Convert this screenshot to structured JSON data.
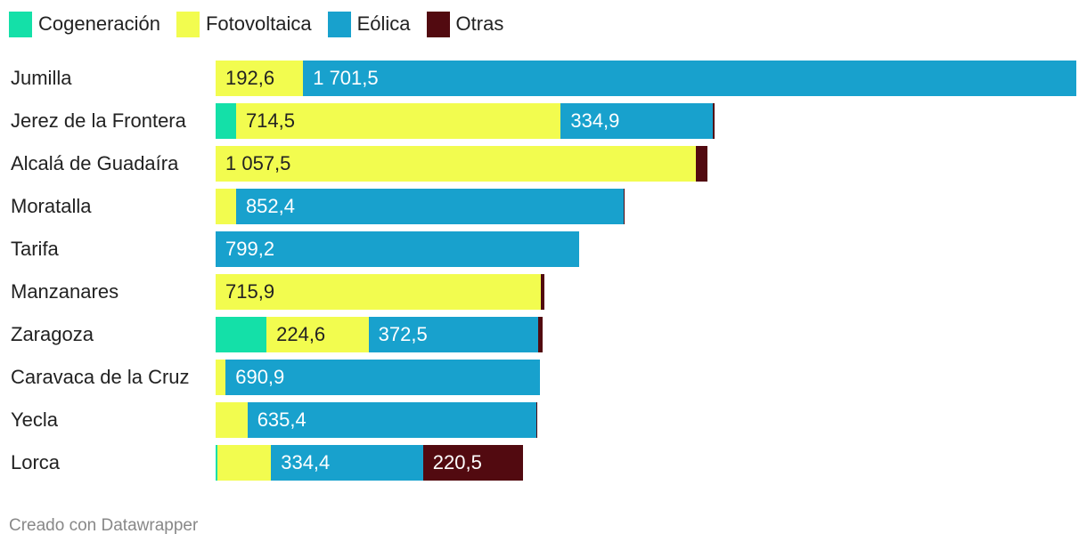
{
  "chart_data": {
    "type": "bar",
    "orientation": "horizontal",
    "stacked": true,
    "legend_position": "top-left",
    "categories": [
      "Jumilla",
      "Jerez de la Frontera",
      "Alcalá de Guadaíra",
      "Moratalla",
      "Tarifa",
      "Manzanares",
      "Zaragoza",
      "Caravaca de la Cruz",
      "Yecla",
      "Lorca"
    ],
    "series": [
      {
        "name": "Cogeneración",
        "color": "#14e0a8",
        "values": [
          0,
          45,
          0,
          0,
          0,
          0,
          112,
          0,
          0,
          4
        ],
        "labels": [
          "",
          "",
          "",
          "",
          "",
          "",
          "",
          "",
          "",
          ""
        ]
      },
      {
        "name": "Fotovoltaica",
        "color": "#f2fc4f",
        "values": [
          192.6,
          714.5,
          1057.5,
          45,
          0,
          715.9,
          224.6,
          22,
          70,
          118
        ],
        "labels": [
          "192,6",
          "714,5",
          "1 057,5",
          "",
          "",
          "715,9",
          "224,6",
          "",
          "",
          ""
        ]
      },
      {
        "name": "Eólica",
        "color": "#18a1cd",
        "values": [
          1701.5,
          334.9,
          0,
          852.4,
          799.2,
          0,
          372.5,
          690.9,
          635.4,
          334.4
        ],
        "labels": [
          "1 701,5",
          "334,9",
          "",
          "852,4",
          "799,2",
          "",
          "372,5",
          "690,9",
          "635,4",
          "334,4"
        ]
      },
      {
        "name": "Otras",
        "color": "#520a10",
        "values": [
          0,
          3,
          24,
          3,
          0,
          8,
          11,
          0,
          3,
          220.5
        ],
        "labels": [
          "",
          "",
          "",
          "",
          "",
          "",
          "",
          "",
          "",
          "220,5"
        ]
      }
    ],
    "xlim": [
      0,
      1894.1
    ]
  },
  "footer": "Creado con Datawrapper"
}
